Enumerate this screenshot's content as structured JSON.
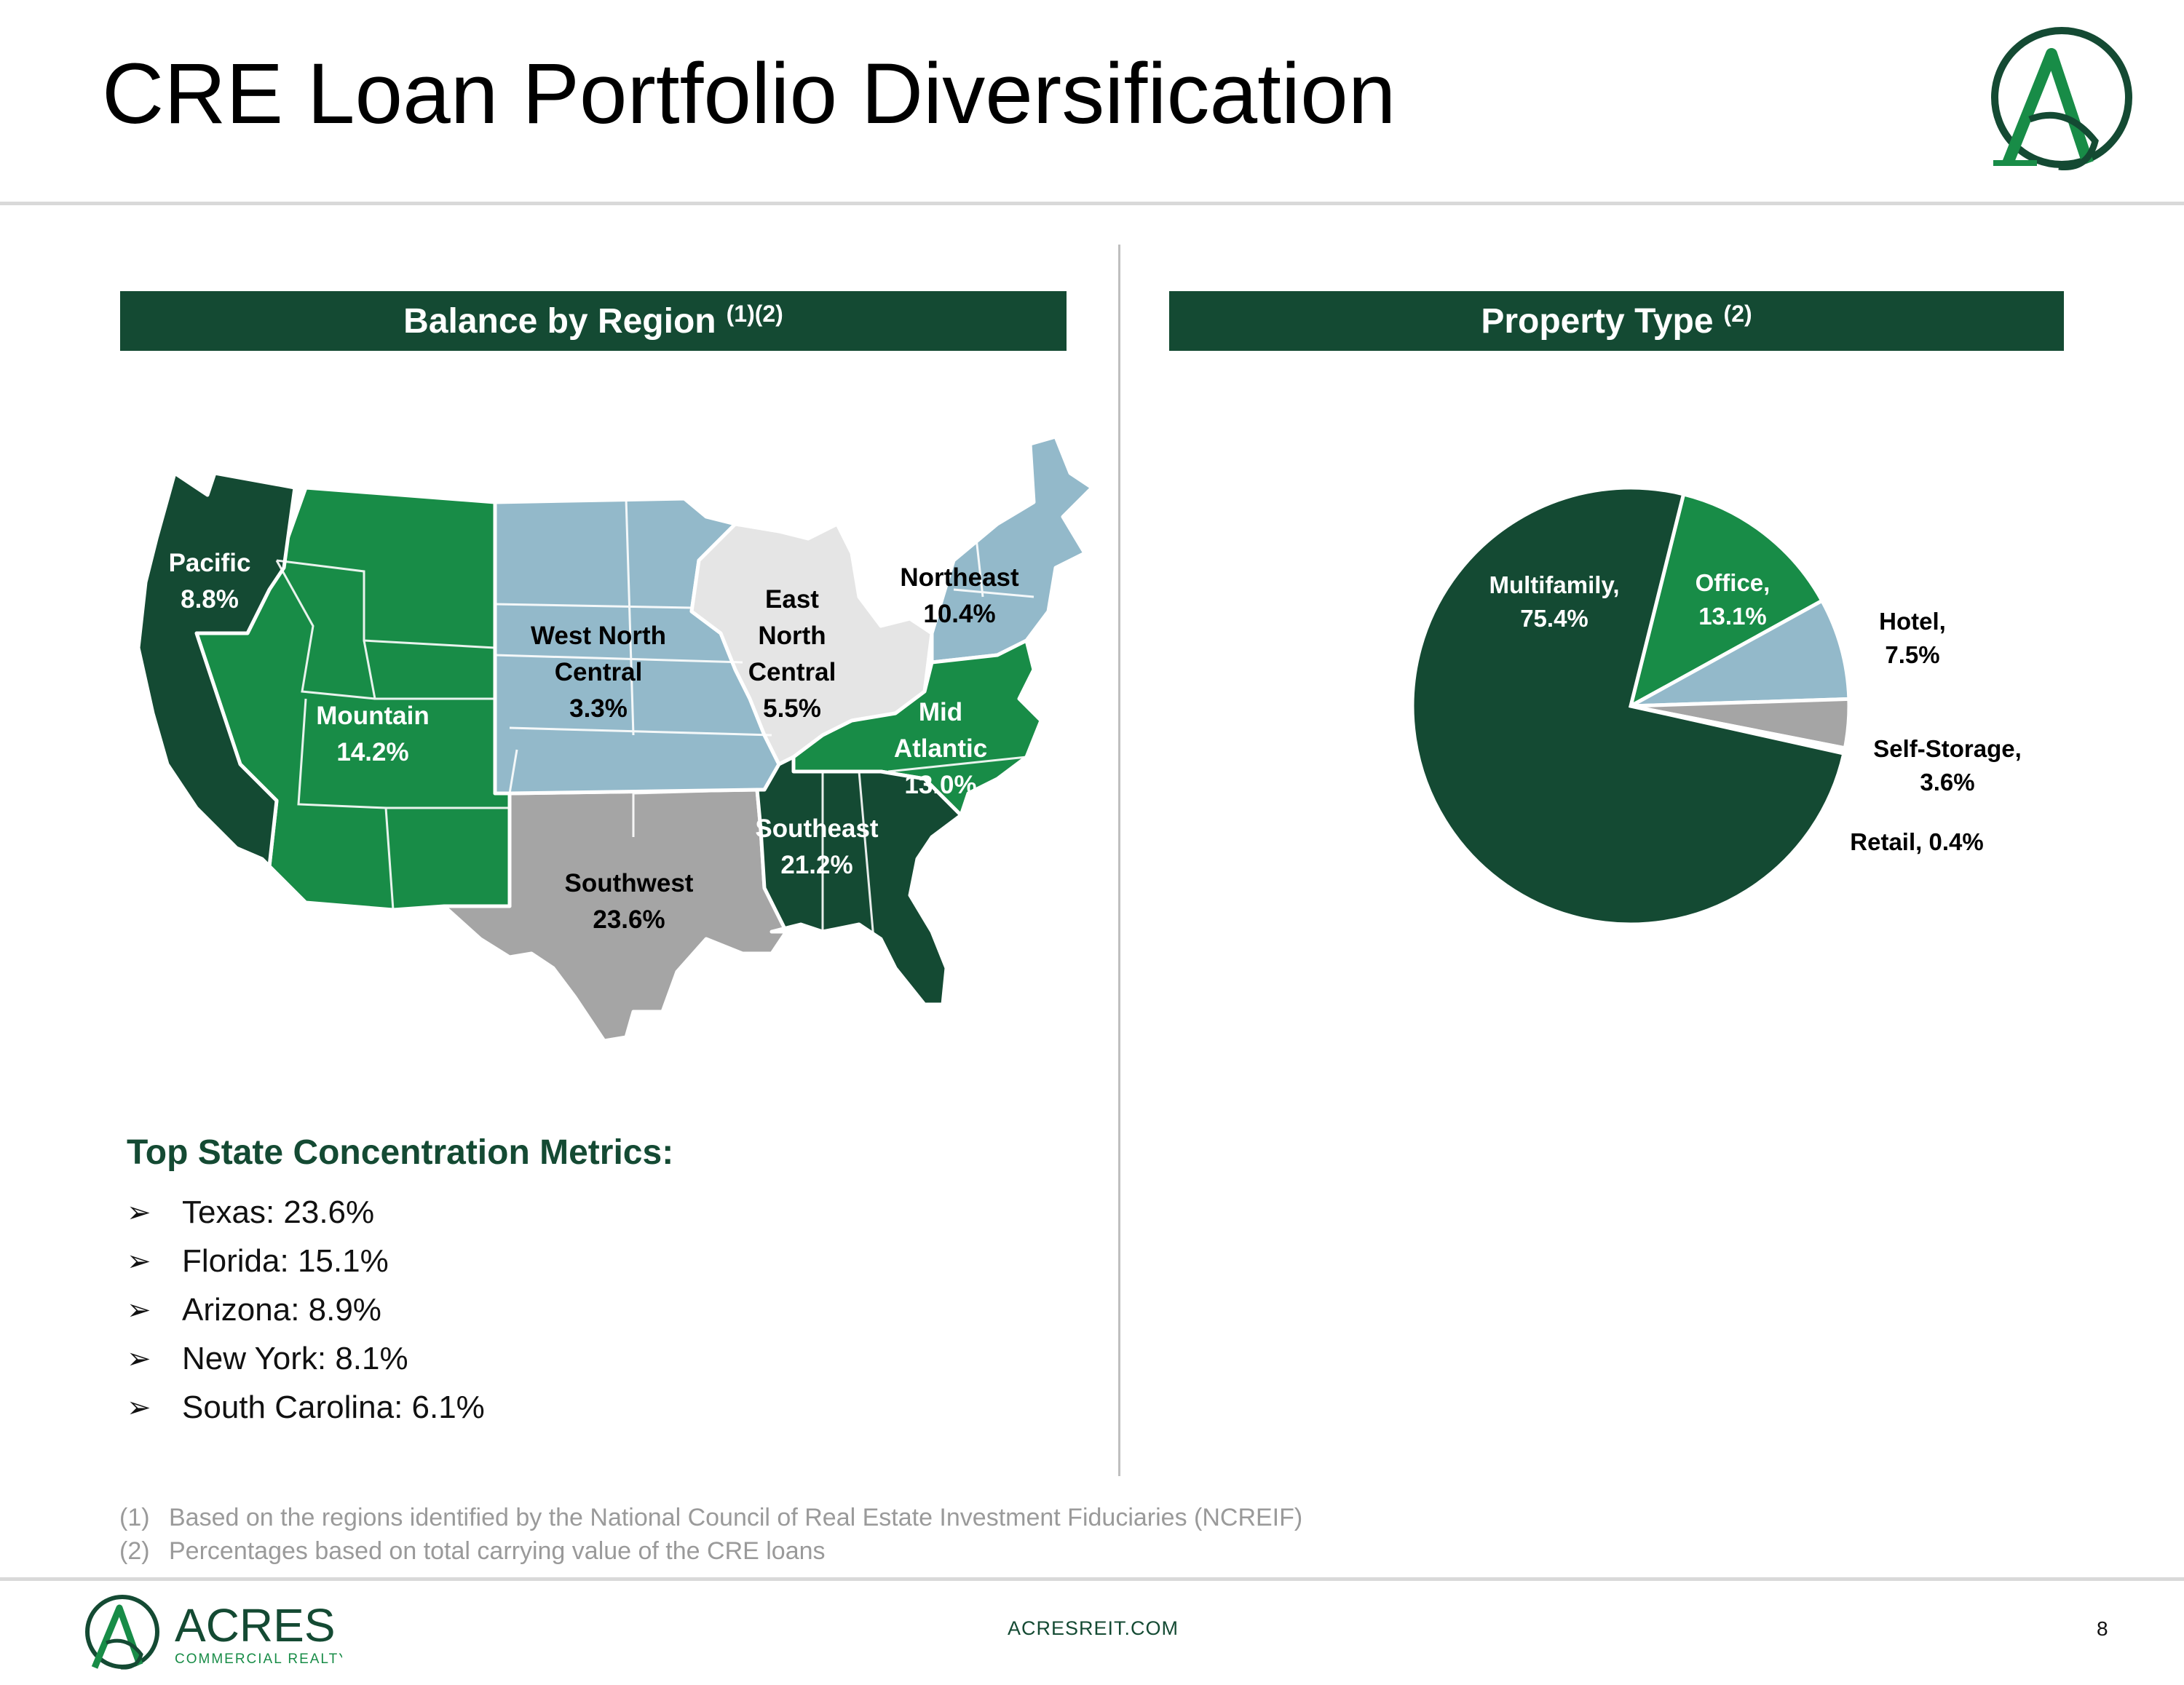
{
  "header": {
    "title": "CRE Loan Portfolio Diversification"
  },
  "region_panel": {
    "title": "Balance by Region",
    "superscript": "(1)(2)"
  },
  "property_panel": {
    "title": "Property Type",
    "superscript": "(2)"
  },
  "colors": {
    "dark_green": "#144a33",
    "green": "#188c47",
    "light_blue": "#93b9ca",
    "light_gray": "#e5e5e5",
    "gray": "#a5a5a5"
  },
  "chart_data": [
    {
      "type": "map",
      "title": "Balance by Region",
      "regions": [
        {
          "name": "Pacific",
          "value_label": "8.8%",
          "value": 8.8,
          "color": "#144a33",
          "label_color": "#ffffff"
        },
        {
          "name": "Mountain",
          "value_label": "14.2%",
          "value": 14.2,
          "color": "#188c47",
          "label_color": "#ffffff"
        },
        {
          "name": "West North Central",
          "value_label": "3.3%",
          "value": 3.3,
          "color": "#93b9ca",
          "label_color": "#000000"
        },
        {
          "name": "East North Central",
          "value_label": "5.5%",
          "value": 5.5,
          "color": "#e5e5e5",
          "label_color": "#000000"
        },
        {
          "name": "Northeast",
          "value_label": "10.4%",
          "value": 10.4,
          "color": "#93b9ca",
          "label_color": "#000000"
        },
        {
          "name": "Mid Atlantic",
          "value_label": "13.0%",
          "value": 13.0,
          "color": "#188c47",
          "label_color": "#ffffff"
        },
        {
          "name": "Southeast",
          "value_label": "21.2%",
          "value": 21.2,
          "color": "#144a33",
          "label_color": "#ffffff"
        },
        {
          "name": "Southwest",
          "value_label": "23.6%",
          "value": 23.6,
          "color": "#a5a5a5",
          "label_color": "#000000"
        }
      ]
    },
    {
      "type": "pie",
      "title": "Property Type",
      "slices": [
        {
          "name": "Multifamily",
          "value": 75.4,
          "color": "#144a33",
          "label_color": "#ffffff"
        },
        {
          "name": "Office",
          "value": 13.1,
          "color": "#188c47",
          "label_color": "#ffffff"
        },
        {
          "name": "Hotel",
          "value": 7.5,
          "color": "#93b9ca",
          "label_color": "#000000"
        },
        {
          "name": "Self-Storage",
          "value": 3.6,
          "color": "#a5a5a5",
          "label_color": "#000000"
        },
        {
          "name": "Retail",
          "value": 0.4,
          "color": "#ffffff",
          "label_color": "#000000"
        }
      ],
      "labels": [
        "Multifamily,",
        "75.4%",
        "Office,",
        "13.1%",
        "Hotel,",
        "7.5%",
        "Self-Storage,",
        "3.6%",
        "Retail, 0.4%"
      ]
    }
  ],
  "metrics": {
    "title": "Top State Concentration Metrics:",
    "items": [
      "Texas: 23.6%",
      "Florida: 15.1%",
      "Arizona: 8.9%",
      "New York: 8.1%",
      "South Carolina: 6.1%"
    ]
  },
  "footnotes": [
    {
      "num": "(1)",
      "text": "Based on the regions identified by the National Council of Real Estate Investment Fiduciaries (NCREIF)"
    },
    {
      "num": "(2)",
      "text": "Percentages based on total carrying value of the CRE loans"
    }
  ],
  "footer": {
    "brand": "ACRES",
    "brand_sub": "COMMERCIAL REALTY",
    "url": "ACRESREIT.COM",
    "page": "8"
  }
}
